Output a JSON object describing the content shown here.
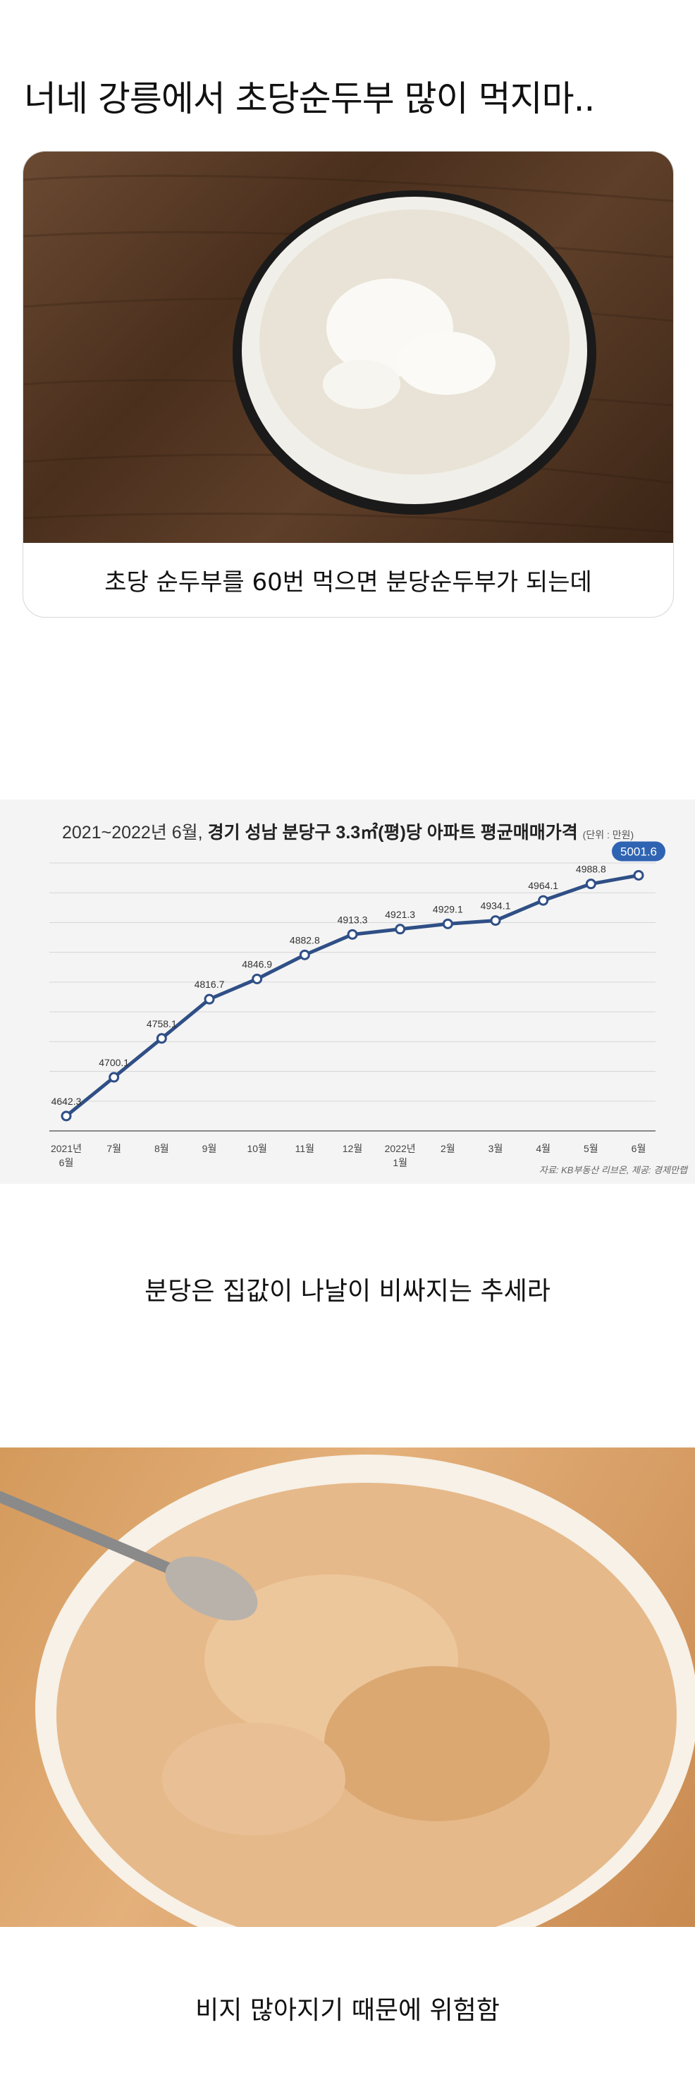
{
  "post": {
    "title": "너네 강릉에서 초당순두부 많이 먹지마..",
    "card_caption": "초당 순두부를 60번 먹으면 분당순두부가 되는데",
    "caption2": "분당은 집값이 나날이 비싸지는 추세라",
    "caption3": "비지 많아지기 때문에 위험함"
  },
  "chart_data": {
    "type": "line",
    "title_prefix": "2021~2022년 6월,",
    "title_bold": "경기 성남 분당구 3.3㎡(평)당 아파트 평균매매가격",
    "unit": "(단위 : 만원)",
    "source": "자료: KB부동산 리브온, 제공: 경제만랩",
    "categories": [
      "2021년 6월",
      "7월",
      "8월",
      "9월",
      "10월",
      "11월",
      "12월",
      "2022년 1월",
      "2월",
      "3월",
      "4월",
      "5월",
      "6월"
    ],
    "values": [
      4642.3,
      4700.1,
      4758.1,
      4816.7,
      4846.9,
      4882.8,
      4913.3,
      4921.3,
      4929.1,
      4934.1,
      4964.1,
      4988.8,
      5001.6
    ],
    "value_labels": [
      "4642.3",
      "4700.1",
      "4758.1",
      "4816.7",
      "4846.9",
      "4882.8",
      "4913.3",
      "4921.3",
      "4929.1",
      "4934.1",
      "4964.1",
      "4988.8",
      "5001.6"
    ],
    "ylim": [
      4620,
      5020
    ],
    "line_color": "#2f4f86",
    "highlight_color": "#2f64b3",
    "grid": true
  },
  "colors": {
    "card_border": "#d7d7d7"
  }
}
